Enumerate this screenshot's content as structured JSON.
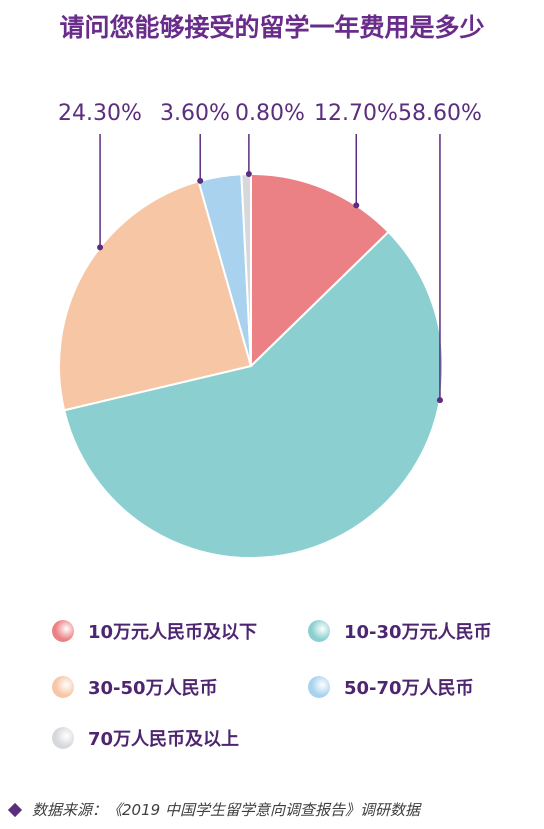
{
  "title": "请问您能够接受的留学一年费用是多少",
  "chart_data": {
    "type": "pie",
    "title": "请问您能够接受的留学一年费用是多少",
    "slices": [
      {
        "label": "10万元人民币及以下",
        "value": 12.7,
        "display": "12.70%",
        "color": "#ec8185"
      },
      {
        "label": "10-30万元人民币",
        "value": 58.6,
        "display": "58.60%",
        "color": "#8ccfd0"
      },
      {
        "label": "30-50万人民币",
        "value": 24.3,
        "display": "24.30%",
        "color": "#f7c6a5"
      },
      {
        "label": "50-70万人民币",
        "value": 3.6,
        "display": "3.60%",
        "color": "#a9d2ee"
      },
      {
        "label": "70万人民币及以上",
        "value": 0.8,
        "display": "0.80%",
        "color": "#d6d8dc"
      }
    ],
    "legend_placement": "bottom"
  },
  "source": "数据来源：《2019 中国学生留学意向调查报告》调研数据"
}
